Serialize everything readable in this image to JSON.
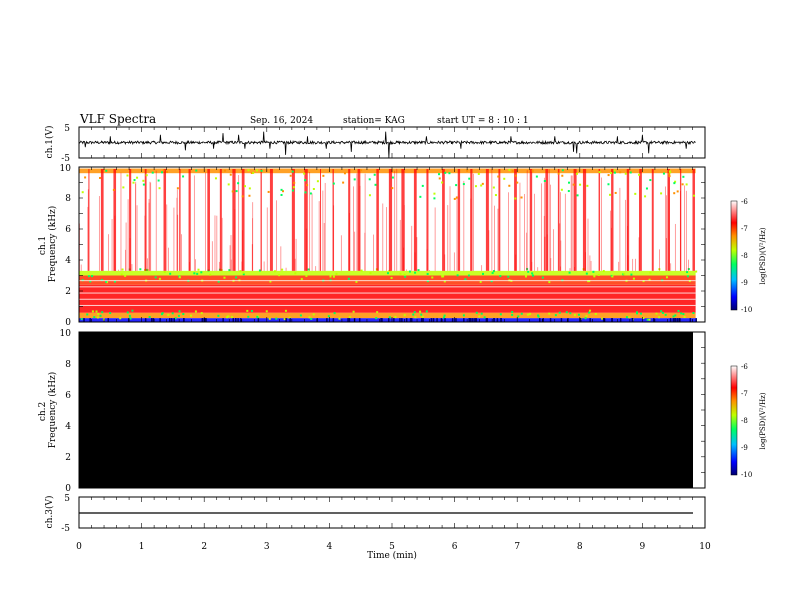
{
  "header": {
    "title": "VLF Spectra",
    "date": "Sep. 16, 2024",
    "station": "station= KAG",
    "start_ut": "start  UT =   8 : 10 : 1"
  },
  "colors": {
    "colorbar_stops": [
      "#000070",
      "#0000ff",
      "#00c0ff",
      "#00ff60",
      "#c0ff00",
      "#ff9000",
      "#ff0000",
      "#ffffff"
    ],
    "trace": "#000000",
    "ch2_fill": "#000000"
  },
  "chart_data": [
    {
      "type": "line",
      "panel": "ch1-waveform",
      "ylabel": "ch.1(V)",
      "ylim": [
        -5,
        5
      ],
      "yticks": [
        "5",
        "-5"
      ],
      "xlim": [
        0,
        10
      ],
      "series": [
        {
          "baseline": 0,
          "spike_times": [
            0.1,
            0.5,
            1.3,
            1.7,
            2.15,
            2.3,
            2.55,
            2.65,
            2.95,
            3.05,
            3.3,
            3.65,
            3.95,
            4.35,
            4.9,
            4.95,
            5.55,
            6.1,
            6.9,
            7.6,
            7.9,
            7.95,
            8.6,
            9.0,
            9.1,
            9.7
          ],
          "spike_amplitudes": [
            -1.5,
            2.0,
            2.5,
            -2.5,
            -2.0,
            3.0,
            2.5,
            -2.0,
            3.5,
            -2.0,
            -4.0,
            2.0,
            -2.0,
            -3.0,
            3.5,
            -5.0,
            2.0,
            -2.0,
            2.0,
            2.0,
            -3.0,
            -3.5,
            2.0,
            2.5,
            -3.5,
            -2.0
          ]
        }
      ]
    },
    {
      "type": "heatmap",
      "panel": "ch1-spectrogram",
      "ylabel": "ch.1\nFrequency (kHz)",
      "xlim": [
        0,
        10
      ],
      "ylim": [
        0,
        10
      ],
      "yticks": [
        "0",
        "2",
        "4",
        "6",
        "8",
        "10"
      ],
      "colorbar": {
        "label": "log(PSD)(V²/Hz)",
        "range": [
          -10,
          -6
        ],
        "ticks": [
          "-6",
          "-7",
          "-8",
          "-9",
          "-10"
        ]
      },
      "vertical_event_times": [
        0.15,
        0.35,
        0.55,
        0.8,
        1.05,
        1.35,
        1.6,
        1.75,
        2.05,
        2.25,
        2.45,
        2.6,
        2.9,
        3.05,
        3.4,
        3.6,
        3.85,
        4.05,
        4.3,
        4.45,
        4.75,
        4.95,
        5.15,
        5.35,
        5.55,
        5.8,
        6.05,
        6.25,
        6.5,
        6.7,
        6.95,
        7.2,
        7.45,
        7.65,
        7.9,
        8.05,
        8.3,
        8.5,
        8.75,
        8.95,
        9.15,
        9.4,
        9.6,
        9.8
      ]
    },
    {
      "type": "heatmap",
      "panel": "ch2-spectrogram",
      "ylabel": "ch.2\nFrequency (kHz)",
      "xlim": [
        0,
        10
      ],
      "ylim": [
        0,
        10
      ],
      "yticks": [
        "0",
        "2",
        "4",
        "6",
        "8",
        "10"
      ],
      "fill_value": "no data (black)",
      "colorbar": {
        "label": "log(PSD)(V²/Hz)",
        "range": [
          -10,
          -6
        ],
        "ticks": [
          "-6",
          "-7",
          "-8",
          "-9",
          "-10"
        ]
      }
    },
    {
      "type": "line",
      "panel": "ch3-waveform",
      "ylabel": "ch.3(V)",
      "ylim": [
        -5,
        5
      ],
      "yticks": [
        "5",
        "-5"
      ],
      "xlim": [
        0,
        10
      ],
      "series": [
        {
          "x": [
            0,
            9.85
          ],
          "values": [
            -1,
            -1
          ]
        }
      ]
    }
  ],
  "xaxis": {
    "label": "Time  (min)",
    "ticks": [
      "0",
      "1",
      "2",
      "3",
      "4",
      "5",
      "6",
      "7",
      "8",
      "9",
      "10"
    ]
  }
}
